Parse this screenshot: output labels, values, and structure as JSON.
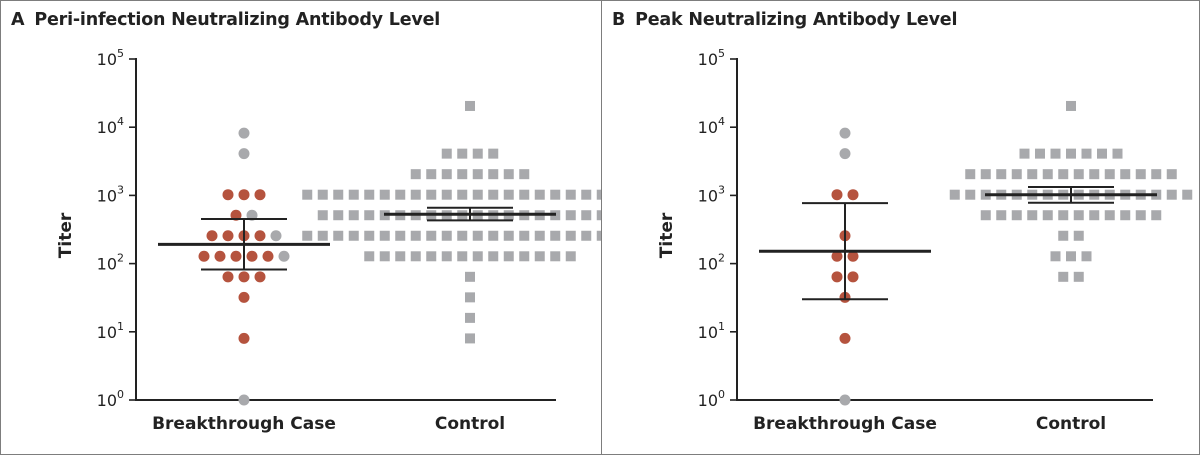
{
  "colors": {
    "breakthrough_red": "#b5533e",
    "gray_point": "#a8a9ac",
    "axis": "#222222",
    "panel_border": "#7d7d7d"
  },
  "panels": [
    {
      "letter": "A",
      "title": "Peri-infection Neutralizing Antibody Level"
    },
    {
      "letter": "B",
      "title": "Peak Neutralizing Antibody Level"
    }
  ],
  "chart_data": [
    {
      "type": "scatter",
      "title": "Peri-infection Neutralizing Antibody Level",
      "panel_letter": "A",
      "ylabel": "Titer",
      "yscale": "log",
      "ylim": [
        1,
        100000
      ],
      "y_ticks": [
        {
          "base": "10",
          "exp": "0"
        },
        {
          "base": "10",
          "exp": "1"
        },
        {
          "base": "10",
          "exp": "2"
        },
        {
          "base": "10",
          "exp": "3"
        },
        {
          "base": "10",
          "exp": "4"
        },
        {
          "base": "10",
          "exp": "5"
        }
      ],
      "categories": [
        "Breakthrough Case",
        "Control"
      ],
      "groups": [
        {
          "category": "Breakthrough Case",
          "marker": "circle",
          "points_red": [
            8,
            32,
            64,
            64,
            64,
            128,
            128,
            128,
            128,
            128,
            256,
            256,
            256,
            256,
            512,
            1024,
            1024,
            1024
          ],
          "points_gray": [
            1,
            128,
            256,
            512,
            4096,
            8192
          ],
          "median": 191,
          "ci": [
            82,
            450
          ]
        },
        {
          "category": "Control",
          "marker": "square",
          "rows": [
            {
              "titer": 8,
              "count": 1
            },
            {
              "titer": 16,
              "count": 1
            },
            {
              "titer": 32,
              "count": 1
            },
            {
              "titer": 64,
              "count": 1
            },
            {
              "titer": 128,
              "count": 14
            },
            {
              "titer": 256,
              "count": 22
            },
            {
              "titer": 512,
              "count": 20
            },
            {
              "titer": 1024,
              "count": 22
            },
            {
              "titer": 2048,
              "count": 8
            },
            {
              "titer": 4096,
              "count": 4
            },
            {
              "titer": 20480,
              "count": 1
            }
          ],
          "median": 530,
          "ci": [
            430,
            660
          ]
        }
      ]
    },
    {
      "type": "scatter",
      "title": "Peak Neutralizing Antibody Level",
      "panel_letter": "B",
      "ylabel": "Titer",
      "yscale": "log",
      "ylim": [
        1,
        100000
      ],
      "y_ticks": [
        {
          "base": "10",
          "exp": "0"
        },
        {
          "base": "10",
          "exp": "1"
        },
        {
          "base": "10",
          "exp": "2"
        },
        {
          "base": "10",
          "exp": "3"
        },
        {
          "base": "10",
          "exp": "4"
        },
        {
          "base": "10",
          "exp": "5"
        }
      ],
      "categories": [
        "Breakthrough Case",
        "Control"
      ],
      "groups": [
        {
          "category": "Breakthrough Case",
          "marker": "circle",
          "points_red": [
            8,
            32,
            64,
            64,
            128,
            128,
            256,
            1024,
            1024
          ],
          "points_gray": [
            1,
            4096,
            8192
          ],
          "median": 152,
          "ci": [
            30,
            770
          ]
        },
        {
          "category": "Control",
          "marker": "square",
          "rows": [
            {
              "titer": 64,
              "count": 2
            },
            {
              "titer": 128,
              "count": 3
            },
            {
              "titer": 256,
              "count": 2
            },
            {
              "titer": 512,
              "count": 12
            },
            {
              "titer": 1024,
              "count": 16
            },
            {
              "titer": 2048,
              "count": 14
            },
            {
              "titer": 4096,
              "count": 7
            },
            {
              "titer": 20480,
              "count": 1
            }
          ],
          "median": 1024,
          "ci": [
            780,
            1330
          ]
        }
      ]
    }
  ]
}
